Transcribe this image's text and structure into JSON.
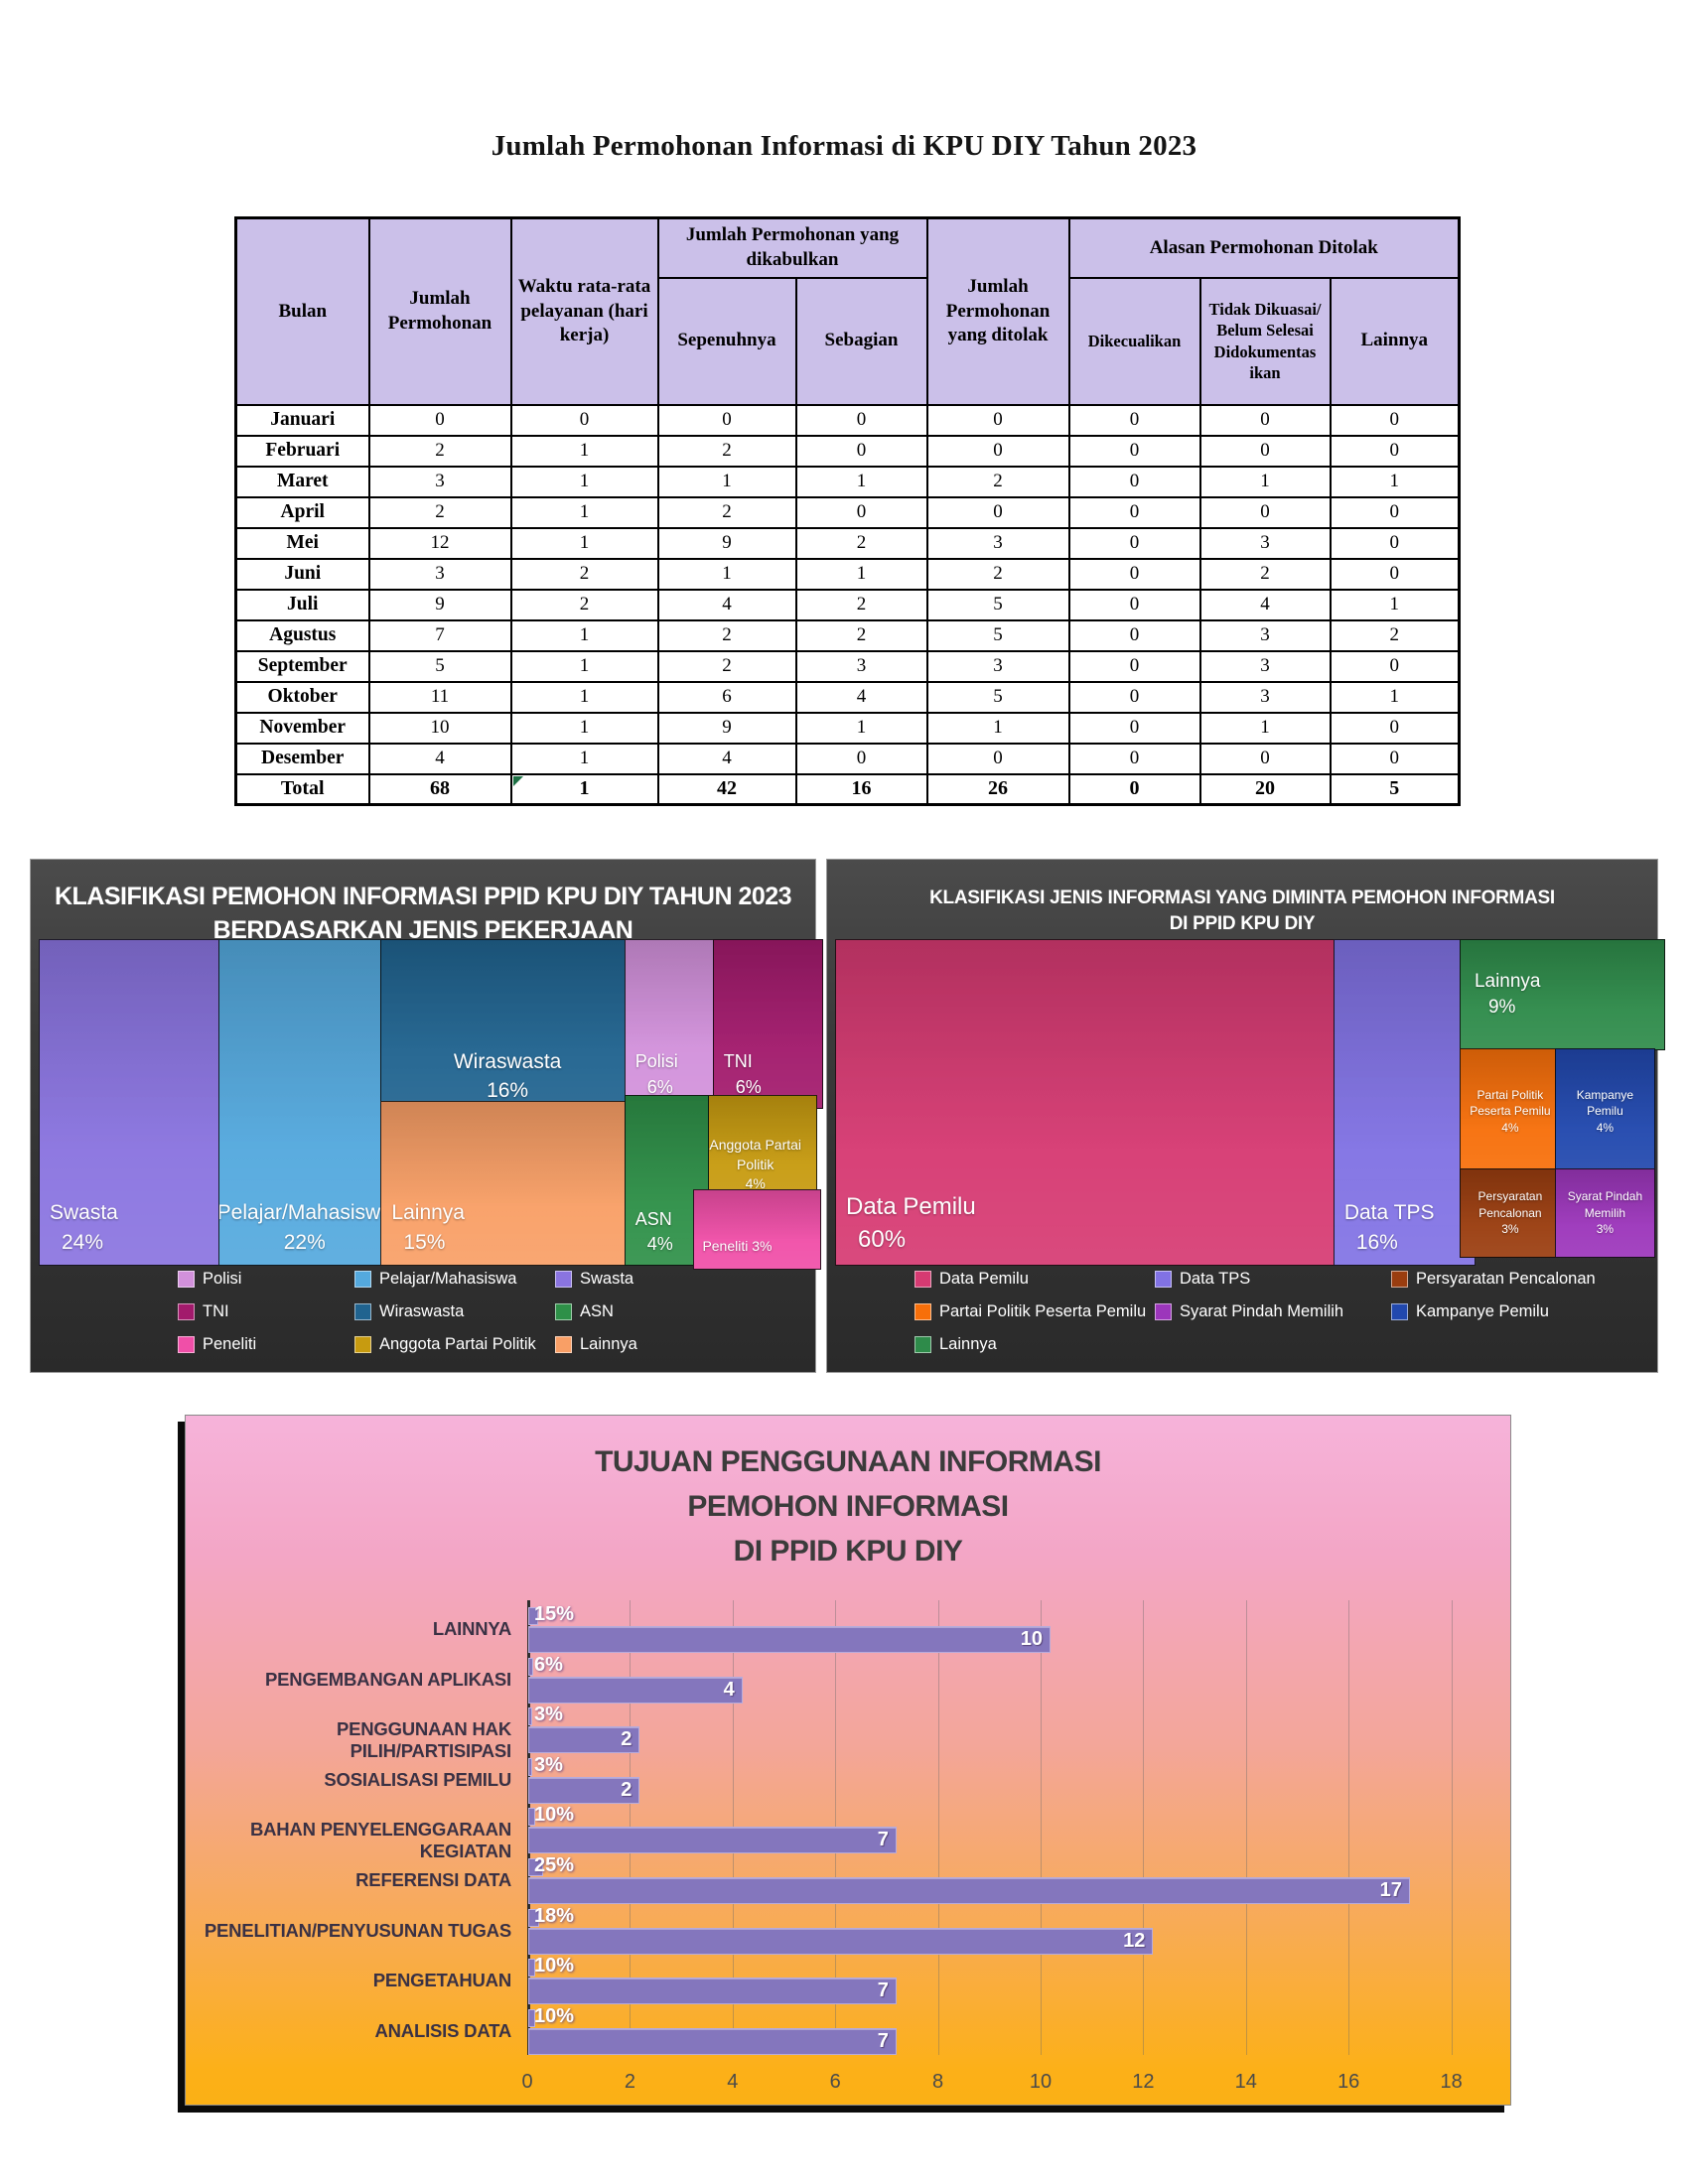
{
  "document_title": "Jumlah Permohonan Informasi di KPU DIY Tahun 2023",
  "table": {
    "headers": {
      "bulan": "Bulan",
      "jumlah_permohonan": "Jumlah Permohonan",
      "waktu_rata": "Waktu rata-rata pelayanan (hari kerja)",
      "dikabulkan_group": "Jumlah Permohonan yang dikabulkan",
      "sepenuhnya": "Sepenuhnya",
      "sebagian": "Sebagian",
      "ditolak": "Jumlah Permohonan yang ditolak",
      "alasan_group": "Alasan Permohonan Ditolak",
      "dikecualikan": "Dikecualikan",
      "tidak_dikuasai": "Tidak Dikuasai/ Belum Selesai Didokumentas ikan",
      "lainnya": "Lainnya"
    },
    "rows": [
      {
        "bulan": "Januari",
        "values": [
          0,
          0,
          0,
          0,
          0,
          0,
          0,
          0
        ]
      },
      {
        "bulan": "Februari",
        "values": [
          2,
          1,
          2,
          0,
          0,
          0,
          0,
          0
        ]
      },
      {
        "bulan": "Maret",
        "values": [
          3,
          1,
          1,
          1,
          2,
          0,
          1,
          1
        ]
      },
      {
        "bulan": "April",
        "values": [
          2,
          1,
          2,
          0,
          0,
          0,
          0,
          0
        ]
      },
      {
        "bulan": "Mei",
        "values": [
          12,
          1,
          9,
          2,
          3,
          0,
          3,
          0
        ]
      },
      {
        "bulan": "Juni",
        "values": [
          3,
          2,
          1,
          1,
          2,
          0,
          2,
          0
        ]
      },
      {
        "bulan": "Juli",
        "values": [
          9,
          2,
          4,
          2,
          5,
          0,
          4,
          1
        ]
      },
      {
        "bulan": "Agustus",
        "values": [
          7,
          1,
          2,
          2,
          5,
          0,
          3,
          2
        ]
      },
      {
        "bulan": "September",
        "values": [
          5,
          1,
          2,
          3,
          3,
          0,
          3,
          0
        ]
      },
      {
        "bulan": "Oktober",
        "values": [
          11,
          1,
          6,
          4,
          5,
          0,
          3,
          1
        ]
      },
      {
        "bulan": "November",
        "values": [
          10,
          1,
          9,
          1,
          1,
          0,
          1,
          0
        ]
      },
      {
        "bulan": "Desember",
        "values": [
          4,
          1,
          4,
          0,
          0,
          0,
          0,
          0
        ]
      }
    ],
    "total_row": {
      "bulan": "Total",
      "values": [
        68,
        1,
        42,
        16,
        26,
        0,
        20,
        5
      ]
    }
  },
  "chart_data": [
    {
      "type": "treemap",
      "title": "KLASIFIKASI PEMOHON INFORMASI PPID KPU DIY TAHUN 2023 BERDASARKAN JENIS PEKERJAAN",
      "title_lines": [
        "KLASIFIKASI PEMOHON INFORMASI PPID KPU DIY TAHUN 2023",
        "BERDASARKAN JENIS PEKERJAAN"
      ],
      "items": [
        {
          "label": "Swasta",
          "pct": 24,
          "color": "#8A74E0"
        },
        {
          "label": "Pelajar/Mahasiswa",
          "pct": 22,
          "color": "#54A9DE"
        },
        {
          "label": "Wiraswasta",
          "pct": 16,
          "color": "#20638F"
        },
        {
          "label": "Lainnya",
          "pct": 15,
          "color": "#F99F66"
        },
        {
          "label": "Polisi",
          "pct": 6,
          "color": "#D291DB"
        },
        {
          "label": "TNI",
          "pct": 6,
          "color": "#A21A6C"
        },
        {
          "label": "Anggota Partai Politik",
          "pct": 4,
          "color": "#C79B10"
        },
        {
          "label": "ASN",
          "pct": 4,
          "color": "#2E9048"
        },
        {
          "label": "Peneliti",
          "pct": 3,
          "color": "#F04FA8"
        }
      ],
      "legend": [
        "Polisi",
        "Pelajar/Mahasiswa",
        "Swasta",
        "TNI",
        "Wiraswasta",
        "ASN",
        "Peneliti",
        "Anggota Partai Politik",
        "Lainnya"
      ],
      "legend_position": "bottom"
    },
    {
      "type": "treemap",
      "title": "KLASIFIKASI JENIS INFORMASI YANG DIMINTA PEMOHON INFORMASI DI PPID KPU DIY",
      "title_lines": [
        "KLASIFIKASI JENIS INFORMASI YANG DIMINTA PEMOHON INFORMASI",
        "DI PPID KPU DIY"
      ],
      "items": [
        {
          "label": "Data Pemilu",
          "pct": 60,
          "color": "#D63A72"
        },
        {
          "label": "Data TPS",
          "pct": 16,
          "color": "#8172E4"
        },
        {
          "label": "Lainnya",
          "pct": 9,
          "color": "#2E8B4A"
        },
        {
          "label": "Partai Politik Peserta Pemilu",
          "pct": 4,
          "color": "#F76F0A"
        },
        {
          "label": "Kampanye Pemilu",
          "pct": 4,
          "color": "#2148AE"
        },
        {
          "label": "Persyaratan Pencalonan",
          "pct": 3,
          "color": "#9A3D0F"
        },
        {
          "label": "Syarat Pindah Memilih",
          "pct": 3,
          "color": "#9C36BB"
        }
      ],
      "legend": [
        "Data Pemilu",
        "Data TPS",
        "Persyaratan Pencalonan",
        "Partai Politik Peserta Pemilu",
        "Syarat Pindah Memilih",
        "Kampanye Pemilu",
        "Lainnya"
      ],
      "legend_position": "bottom"
    },
    {
      "type": "bar",
      "title": "TUJUAN PENGGUNAAN INFORMASI PEMOHON INFORMASI DI PPID KPU DIY",
      "title_lines": [
        "TUJUAN PENGGUNAAN INFORMASI",
        "PEMOHON INFORMASI",
        "DI PPID KPU DIY"
      ],
      "categories": [
        "LAINNYA",
        "PENGEMBANGAN APLIKASI",
        "PENGGUNAAN HAK PILIH/PARTISIPASI",
        "SOSIALISASI PEMILU",
        "BAHAN PENYELENGGARAAN KEGIATAN",
        "REFERENSI DATA",
        "PENELITIAN/PENYUSUNAN TUGAS",
        "PENGETAHUAN",
        "ANALISIS DATA"
      ],
      "series": [
        {
          "name": "persentase",
          "labels": [
            "15%",
            "6%",
            "3%",
            "3%",
            "10%",
            "25%",
            "18%",
            "10%",
            "10%"
          ],
          "values": [
            0.15,
            0.06,
            0.03,
            0.03,
            0.1,
            0.25,
            0.18,
            0.1,
            0.1
          ]
        },
        {
          "name": "jumlah",
          "values": [
            10,
            4,
            2,
            2,
            7,
            17,
            12,
            7,
            7
          ]
        }
      ],
      "x_ticks": [
        0,
        2,
        4,
        6,
        8,
        10,
        12,
        14,
        16,
        18
      ],
      "xlim": [
        0,
        18
      ],
      "bar_color": "#8476BD",
      "grid": true
    }
  ]
}
